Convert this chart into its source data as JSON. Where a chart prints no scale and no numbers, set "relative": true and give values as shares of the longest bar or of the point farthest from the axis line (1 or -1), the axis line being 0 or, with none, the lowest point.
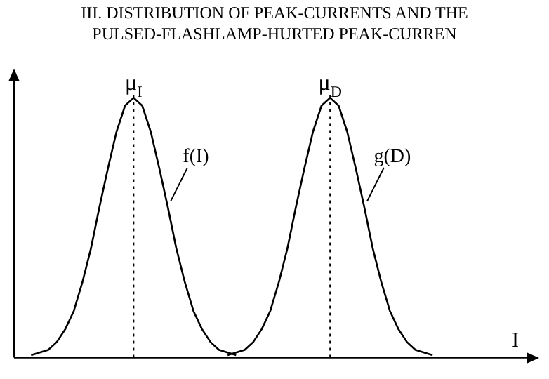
{
  "chart_data": {
    "type": "line",
    "title": "III. DISTRIBUTION OF PEAK-CURRENTS AND THE PULSED-FLASHLAMP-HURTED PEAK-CURREN",
    "xlabel": "I",
    "relative": true,
    "legend": false,
    "marker": "none",
    "line_style": "solid",
    "categories": [
      null,
      null,
      null,
      null,
      null,
      null,
      null,
      null,
      null,
      null,
      null,
      null,
      null,
      null,
      null,
      null,
      null,
      null,
      null,
      null,
      null,
      null,
      null,
      null,
      null,
      null,
      null,
      null,
      null,
      null,
      null,
      null,
      null,
      null,
      null,
      null,
      null,
      null,
      null,
      null,
      null,
      null,
      null,
      null,
      null,
      null,
      null,
      null,
      null,
      null,
      null,
      null,
      null,
      null,
      null,
      null,
      null,
      null,
      null,
      null,
      null
    ],
    "series": [
      {
        "name": "f(I)",
        "color": "#000000",
        "values": [
          null,
          null,
          0.01,
          0.02,
          0.03,
          0.06,
          0.11,
          0.18,
          0.29,
          0.42,
          0.58,
          0.73,
          0.87,
          0.97,
          1,
          0.97,
          0.87,
          0.73,
          0.58,
          0.42,
          0.29,
          0.18,
          0.11,
          0.06,
          0.03,
          0.02,
          0.01,
          null,
          null,
          null,
          null,
          null,
          null,
          null,
          null,
          null,
          null,
          null,
          null,
          null,
          null,
          null,
          null,
          null,
          null,
          null,
          null,
          null,
          null,
          null,
          null,
          null,
          null,
          null,
          null,
          null,
          null,
          null,
          null,
          null,
          null
        ]
      },
      {
        "name": "g(D)",
        "color": "#000000",
        "values": [
          null,
          null,
          null,
          null,
          null,
          null,
          null,
          null,
          null,
          null,
          null,
          null,
          null,
          null,
          null,
          null,
          null,
          null,
          null,
          null,
          null,
          null,
          null,
          null,
          null,
          0.01,
          0.02,
          0.03,
          0.06,
          0.11,
          0.18,
          0.29,
          0.42,
          0.58,
          0.73,
          0.87,
          0.97,
          1,
          0.97,
          0.87,
          0.73,
          0.58,
          0.42,
          0.29,
          0.18,
          0.11,
          0.06,
          0.03,
          0.02,
          0.01,
          null,
          null,
          null,
          null,
          null,
          null,
          null,
          null,
          null,
          null,
          null
        ]
      }
    ],
    "annotations": [
      "μ$_{I}$",
      "μ$_{D}$"
    ]
  }
}
